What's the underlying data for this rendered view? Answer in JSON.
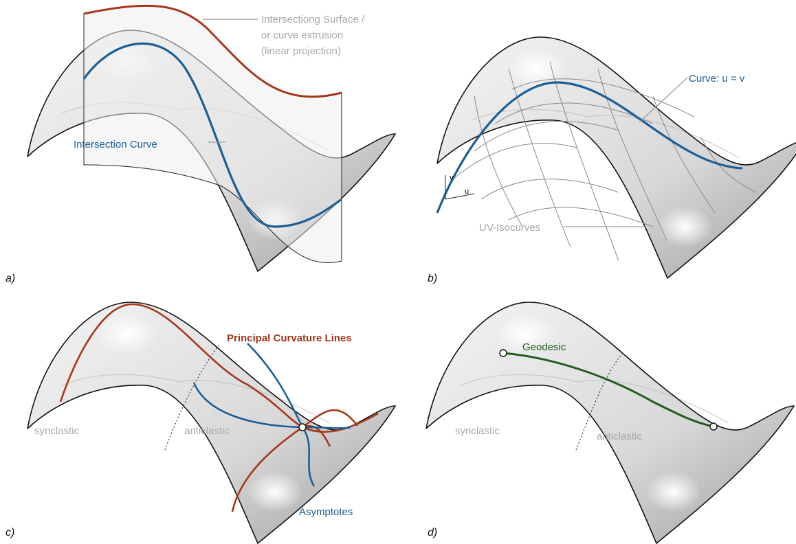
{
  "panels": [
    {
      "label": "a)",
      "annotations": [
        "Intersectiong Surface /",
        "or curve extrusion",
        "(linear projection)"
      ],
      "curve_label": "Intersection Curve"
    },
    {
      "label": "b)",
      "curve_label": "Curve: u = v",
      "isocurves_label": "UV-Isocurves",
      "axis_v": "v",
      "axis_u": "u"
    },
    {
      "label": "c)",
      "title": "Principal Curvature Lines",
      "regions": [
        "synclastic",
        "anticlastic"
      ],
      "asymptotes_label": "Asymptotes"
    },
    {
      "label": "d)",
      "curve_label": "Geodesic",
      "regions": [
        "synclastic",
        "anticlastic"
      ]
    }
  ]
}
